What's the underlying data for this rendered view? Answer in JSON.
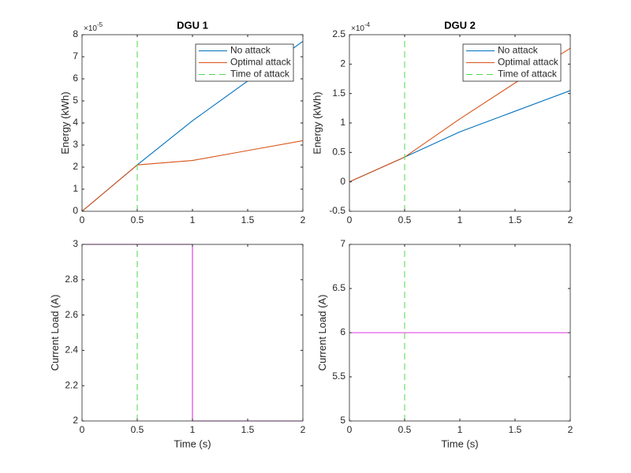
{
  "chart_data": [
    {
      "type": "line",
      "title": "DGU 1",
      "ylabel": "Energy (kWh)",
      "y_multiplier_base": "×10",
      "y_multiplier_exponent": "-5",
      "xlim": [
        0,
        2
      ],
      "xticks": [
        0,
        0.5,
        1,
        1.5,
        2
      ],
      "ylim": [
        0,
        8
      ],
      "yticks": [
        0,
        1,
        2,
        3,
        4,
        5,
        6,
        7,
        8
      ],
      "legend": "upper right",
      "series": [
        {
          "name": "No attack",
          "color": "#0072bd",
          "x": [
            0,
            0.5,
            1,
            1.5,
            2
          ],
          "values": [
            0,
            2.1,
            4.1,
            5.9,
            7.7
          ]
        },
        {
          "name": "Optimal attack",
          "color": "#d95319",
          "x": [
            0,
            0.5,
            1,
            1.5,
            2
          ],
          "values": [
            0,
            2.1,
            2.3,
            2.75,
            3.2
          ]
        },
        {
          "name": "Time of attack",
          "color": "#4dd84d",
          "dashed": true,
          "x": [
            0.5,
            0.5
          ],
          "values": [
            0,
            8
          ]
        }
      ]
    },
    {
      "type": "line",
      "title": "DGU 2",
      "ylabel": "Energy (kWh)",
      "y_multiplier_base": "×10",
      "y_multiplier_exponent": "-4",
      "xlim": [
        0,
        2
      ],
      "xticks": [
        0,
        0.5,
        1,
        1.5,
        2
      ],
      "ylim": [
        -0.5,
        2.5
      ],
      "yticks": [
        -0.5,
        0,
        0.5,
        1,
        1.5,
        2,
        2.5
      ],
      "legend": "upper right",
      "series": [
        {
          "name": "No attack",
          "color": "#0072bd",
          "x": [
            0,
            0.5,
            1,
            1.5,
            2
          ],
          "values": [
            0,
            0.42,
            0.85,
            1.2,
            1.55
          ]
        },
        {
          "name": "Optimal attack",
          "color": "#d95319",
          "x": [
            0,
            0.5,
            1,
            1.5,
            2
          ],
          "values": [
            0,
            0.42,
            1.07,
            1.68,
            2.27
          ]
        },
        {
          "name": "Time of attack",
          "color": "#4dd84d",
          "dashed": true,
          "x": [
            0.5,
            0.5
          ],
          "values": [
            -0.5,
            2.5
          ]
        }
      ]
    },
    {
      "type": "line",
      "xlabel": "Time (s)",
      "ylabel": "Current Load (A)",
      "xlim": [
        0,
        2
      ],
      "xticks": [
        0,
        0.5,
        1,
        1.5,
        2
      ],
      "ylim": [
        2,
        3
      ],
      "yticks": [
        2,
        2.2,
        2.4,
        2.6,
        2.8,
        3
      ],
      "series": [
        {
          "color": "#e030e0",
          "x": [
            0,
            1,
            1,
            2
          ],
          "values": [
            3,
            3,
            2,
            2
          ]
        },
        {
          "color": "#4dd84d",
          "dashed": true,
          "x": [
            0.5,
            0.5
          ],
          "values": [
            2,
            3
          ]
        }
      ]
    },
    {
      "type": "line",
      "xlabel": "Time (s)",
      "ylabel": "Current Load (A)",
      "xlim": [
        0,
        2
      ],
      "xticks": [
        0,
        0.5,
        1,
        1.5,
        2
      ],
      "ylim": [
        5,
        7
      ],
      "yticks": [
        5,
        5.5,
        6,
        6.5,
        7
      ],
      "series": [
        {
          "color": "#e030e0",
          "x": [
            0,
            2
          ],
          "values": [
            6,
            6
          ]
        },
        {
          "color": "#4dd84d",
          "dashed": true,
          "x": [
            0.5,
            0.5
          ],
          "values": [
            5,
            7
          ]
        }
      ]
    }
  ]
}
